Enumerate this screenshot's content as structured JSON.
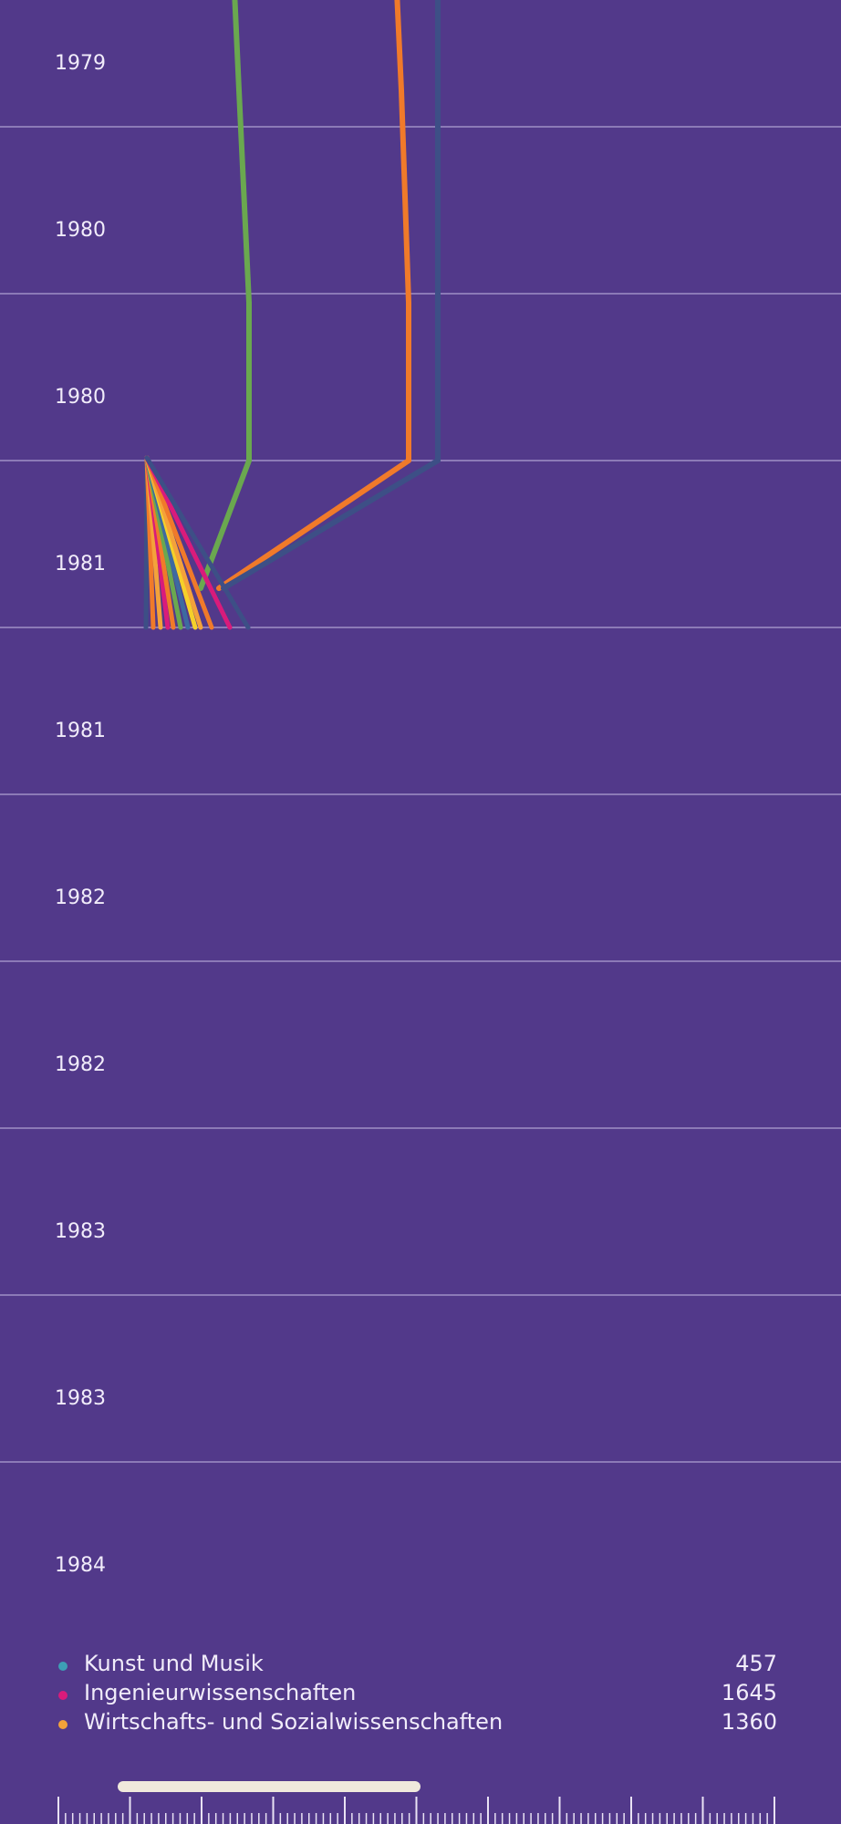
{
  "chart_data": {
    "type": "line",
    "y_axis": {
      "tick_labels": [
        "1979",
        "1980",
        "1980",
        "1981",
        "1981",
        "1982",
        "1982",
        "1983",
        "1983",
        "1984"
      ],
      "direction": "down"
    },
    "series": [
      {
        "color": "#6aa84f",
        "x": [
          257,
          262,
          273,
          273,
          220
        ],
        "y": [
          "1979",
          "1979",
          "1980",
          "1980",
          "1981"
        ]
      },
      {
        "color": "#f07a2a",
        "x": [
          435,
          440,
          448,
          448,
          240
        ],
        "y": [
          "1979",
          "1979",
          "1980",
          "1980",
          "1981"
        ]
      },
      {
        "color": "#3d4f86",
        "x": [
          480,
          480,
          480,
          480,
          245
        ],
        "y": [
          "1979",
          "1979",
          "1980",
          "1980",
          "1981"
        ]
      }
    ],
    "fan": {
      "origin_x": 161,
      "colors": [
        "#3d4f86",
        "#f07a2a",
        "#f4a23a",
        "#d91b7b",
        "#f07a2a",
        "#6aa84f",
        "#3d6aa0",
        "#f5d02a",
        "#f4a23a",
        "#f07a2a",
        "#d91b7b",
        "#3d4f86"
      ],
      "end_x": [
        160,
        168,
        176,
        184,
        190,
        198,
        206,
        214,
        220,
        232,
        252,
        272
      ]
    },
    "grid": true
  },
  "legend": {
    "items": [
      {
        "label": "Kunst und Musik",
        "value": "457",
        "color": "#3d9fb5"
      },
      {
        "label": "Ingenieurwissenschaften",
        "value": "1645",
        "color": "#d91b7b"
      },
      {
        "label": "Wirtschafts- und Sozialwissenschaften",
        "value": "1360",
        "color": "#f4a23a"
      }
    ]
  },
  "scrubber": {
    "position": 0.14,
    "span": 0.36
  }
}
